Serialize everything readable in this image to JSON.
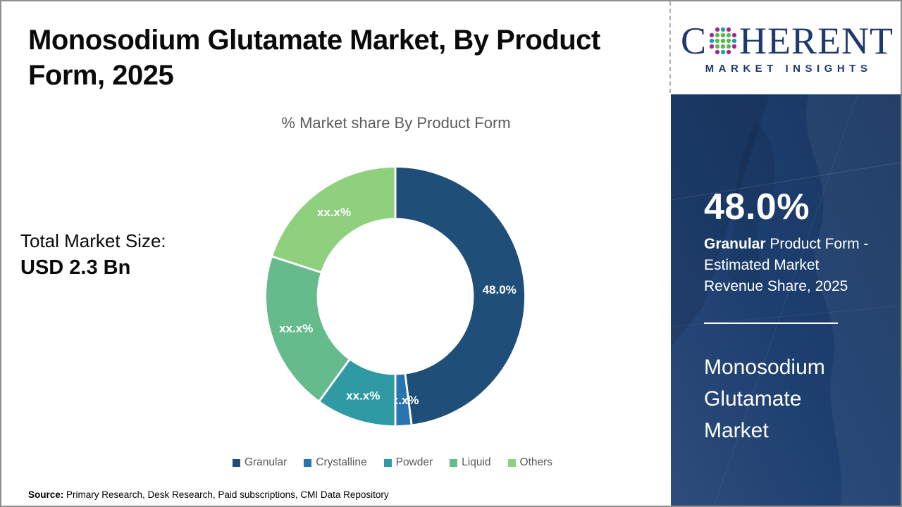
{
  "header": {
    "title": "Monosodium Glutamate Market, By Product Form, 2025"
  },
  "chart": {
    "subtitle": "% Market share By Product Form"
  },
  "chart_data": {
    "type": "pie",
    "donut": true,
    "title": "% Market share By Product Form",
    "start_angle_deg": 0,
    "direction": "clockwise",
    "legend_position": "bottom",
    "segments": [
      {
        "label": "Granular",
        "value": 48,
        "display": "48.0%",
        "color": "#1F4E79"
      },
      {
        "label": "Crystalline",
        "value": 2,
        "display": "xx.x%",
        "color": "#2874AE"
      },
      {
        "label": "Powder",
        "value": 10,
        "display": "xx.x%",
        "color": "#2F9AA3"
      },
      {
        "label": "Liquid",
        "value": 20,
        "display": "xx.x%",
        "color": "#65BB8B"
      },
      {
        "label": "Others",
        "value": 20,
        "display": "xx.x%",
        "color": "#8FD07F"
      }
    ]
  },
  "total_market": {
    "label": "Total Market Size:",
    "value": "USD 2.3 Bn"
  },
  "source": {
    "label": "Source:",
    "text": " Primary Research, Desk Research, Paid subscriptions, CMI Data Repository"
  },
  "logo": {
    "wordmark_left": "C",
    "wordmark_right": "HERENT",
    "tagline": "MARKET INSIGHTS",
    "navy": "#1e3a6d",
    "globe_green": "#5bb84d",
    "globe_teal": "#14a5a0",
    "globe_purple": "#a3258f"
  },
  "sidebar": {
    "stat_value": "48.0%",
    "stat_desc_bold": "Granular",
    "stat_desc_rest": " Product Form - Estimated Market Revenue Share, 2025",
    "market_name": "Monosodium Glutamate Market",
    "panel_color": "#1d3f70"
  }
}
